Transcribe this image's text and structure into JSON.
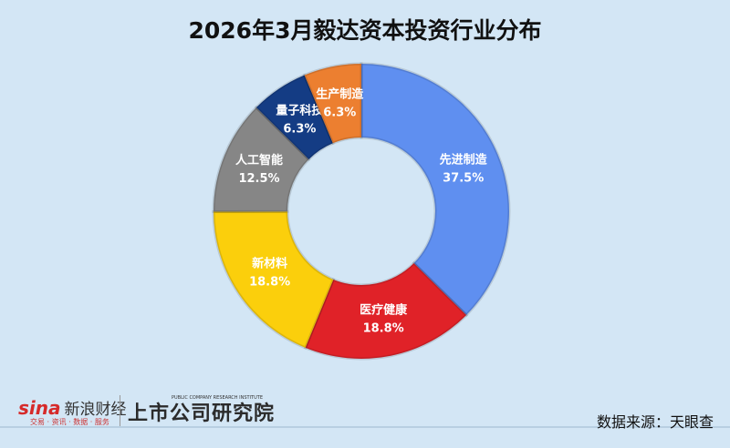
{
  "chart_data": {
    "type": "pie",
    "donut": true,
    "title": "2026年3月毅达资本投资行业分布",
    "slices": [
      {
        "label": "先进制造",
        "value": 37.5,
        "display": "37.5%",
        "color": "#5f8ff0"
      },
      {
        "label": "医疗健康",
        "value": 18.8,
        "display": "18.8%",
        "color": "#e02228"
      },
      {
        "label": "新材料",
        "value": 18.8,
        "display": "18.8%",
        "color": "#fbcf0c"
      },
      {
        "label": "人工智能",
        "value": 12.5,
        "display": "12.5%",
        "color": "#868686"
      },
      {
        "label": "量子科技",
        "value": 6.3,
        "display": "6.3%",
        "color": "#143c84"
      },
      {
        "label": "生产制造",
        "value": 6.3,
        "display": "6.3%",
        "color": "#ec7f30"
      }
    ]
  },
  "footer": {
    "sina_logo": "sina",
    "sina_name": "新浪财经",
    "sina_sub": "交易 · 资讯 · 数据 · 服务",
    "institute": "上市公司研究院",
    "institute_en": "PUBLIC COMPANY RESEARCH INSTITUTE",
    "source": "数据来源：天眼查"
  }
}
